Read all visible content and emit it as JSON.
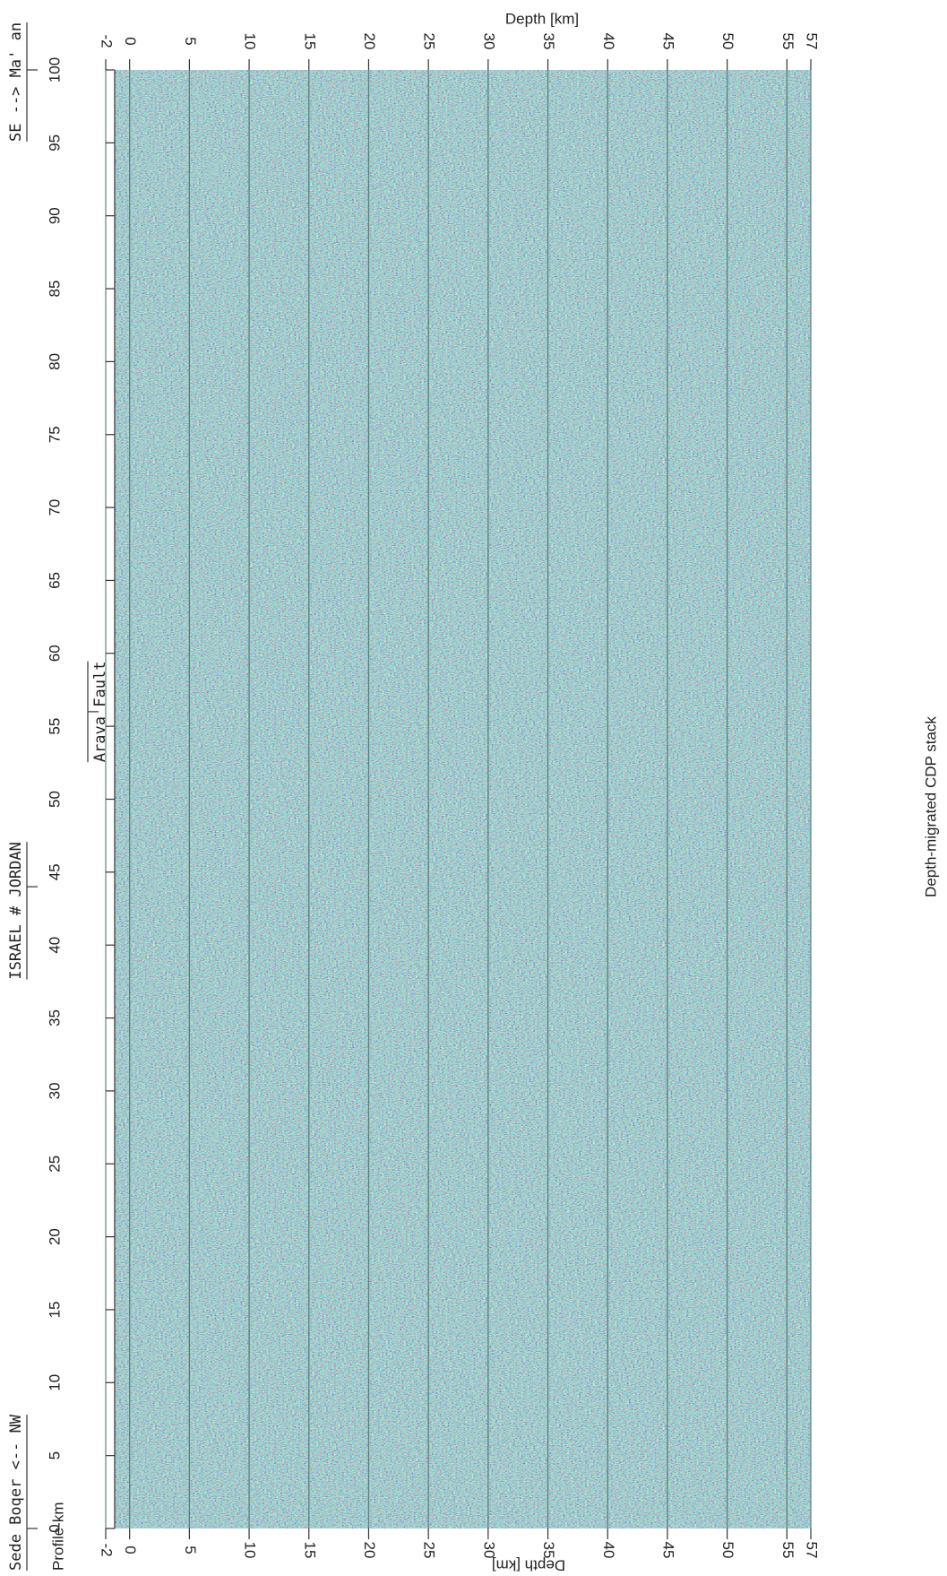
{
  "chart_data": {
    "type": "seismic-section",
    "title": "Depth-migrated CDP stack",
    "x_label": "Profile-km",
    "y_label": "Depth [km]",
    "xlim": [
      0,
      100
    ],
    "xticks": [
      0,
      5,
      10,
      15,
      20,
      25,
      30,
      35,
      40,
      45,
      50,
      55,
      60,
      65,
      70,
      75,
      80,
      85,
      90,
      95,
      100
    ],
    "ylim": [
      -2,
      57
    ],
    "yticks": [
      -2,
      0,
      5,
      10,
      15,
      20,
      25,
      30,
      35,
      40,
      45,
      50,
      55,
      57
    ],
    "grid": true,
    "annotations": [
      {
        "text": "Sede Boqer <-- NW",
        "x": 0
      },
      {
        "text": "ISRAEL # JORDAN",
        "x": 44
      },
      {
        "text": "Arava Fault",
        "x": 56
      },
      {
        "text": "SE --> Ma' an",
        "x": 100
      }
    ]
  }
}
